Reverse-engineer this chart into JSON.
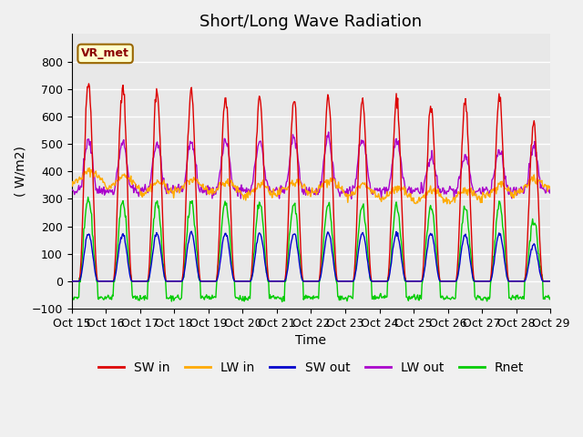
{
  "title": "Short/Long Wave Radiation",
  "xlabel": "Time",
  "ylabel": "( W/m2)",
  "ylim": [
    -100,
    900
  ],
  "yticks": [
    -100,
    0,
    100,
    200,
    300,
    400,
    500,
    600,
    700,
    800
  ],
  "date_labels": [
    "Oct 15",
    "Oct 16",
    "Oct 17",
    "Oct 18",
    "Oct 19",
    "Oct 20",
    "Oct 21",
    "Oct 22",
    "Oct 23",
    "Oct 24",
    "Oct 25",
    "Oct 26",
    "Oct 27",
    "Oct 28",
    "Oct 29"
  ],
  "station_label": "VR_met",
  "colors": {
    "SW_in": "#dd0000",
    "LW_in": "#ffaa00",
    "SW_out": "#0000cc",
    "LW_out": "#aa00cc",
    "Rnet": "#00cc00"
  },
  "legend_labels": [
    "SW in",
    "LW in",
    "SW out",
    "LW out",
    "Rnet"
  ],
  "plot_bg": "#e8e8e8",
  "grid_color": "#ffffff",
  "title_fontsize": 13,
  "label_fontsize": 10,
  "tick_fontsize": 9
}
